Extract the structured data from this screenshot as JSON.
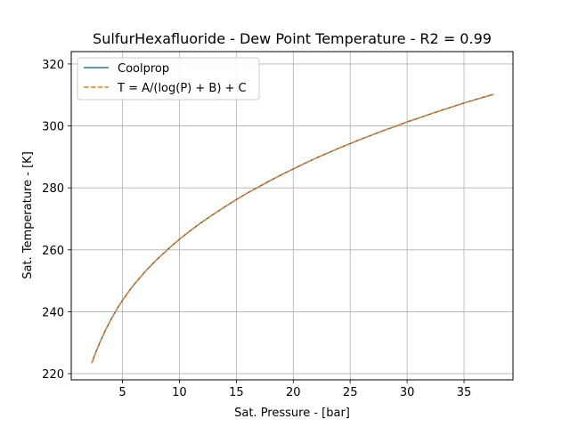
{
  "chart_data": {
    "type": "line",
    "title": "SulfurHexafluoride - Dew Point Temperature - R2 = 0.99",
    "xlabel": "Sat. Pressure - [bar]",
    "ylabel": "Sat. Temperature - [K]",
    "xlim": [
      0.5,
      39.3
    ],
    "ylim": [
      218.0,
      324.0
    ],
    "x_ticks": [
      5,
      10,
      15,
      20,
      25,
      30,
      35
    ],
    "y_ticks": [
      220,
      240,
      260,
      280,
      300,
      320
    ],
    "grid": true,
    "legend_position": "top-left",
    "x": [
      2.3,
      2.6,
      3.0,
      3.5,
      4.0,
      4.5,
      5.0,
      5.5,
      6.0,
      7.0,
      8.0,
      9.0,
      10.0,
      11.0,
      12.0,
      13.0,
      14.0,
      15.0,
      16.0,
      17.0,
      18.0,
      19.0,
      20.0,
      21.0,
      22.0,
      23.0,
      24.0,
      25.0,
      26.0,
      27.0,
      28.0,
      29.0,
      30.0,
      31.0,
      32.0,
      33.0,
      34.0,
      35.0,
      36.0,
      37.0,
      37.6
    ],
    "series": [
      {
        "name": "Coolprop",
        "color": "#1f77b4",
        "style": "solid",
        "values": [
          223.4,
          226.4,
          230.0,
          234.0,
          237.6,
          240.8,
          243.7,
          246.3,
          248.7,
          253.0,
          256.8,
          260.2,
          263.4,
          266.3,
          269.0,
          271.5,
          273.9,
          276.2,
          278.4,
          280.4,
          282.4,
          284.3,
          286.1,
          287.9,
          289.6,
          291.2,
          292.8,
          294.3,
          295.8,
          297.2,
          298.6,
          299.9,
          301.3,
          302.5,
          303.8,
          305.0,
          306.2,
          307.4,
          308.5,
          309.6,
          310.2
        ]
      },
      {
        "name": "T = A/(log(P) + B) + C",
        "color": "#ff7f0e",
        "style": "dashed",
        "values": [
          223.4,
          226.4,
          230.0,
          234.0,
          237.6,
          240.8,
          243.7,
          246.3,
          248.7,
          253.0,
          256.8,
          260.2,
          263.4,
          266.3,
          269.0,
          271.5,
          273.9,
          276.2,
          278.4,
          280.4,
          282.4,
          284.3,
          286.1,
          287.9,
          289.6,
          291.2,
          292.8,
          294.3,
          295.8,
          297.2,
          298.6,
          299.9,
          301.3,
          302.5,
          303.8,
          305.0,
          306.2,
          307.4,
          308.5,
          309.6,
          310.2
        ]
      }
    ]
  }
}
